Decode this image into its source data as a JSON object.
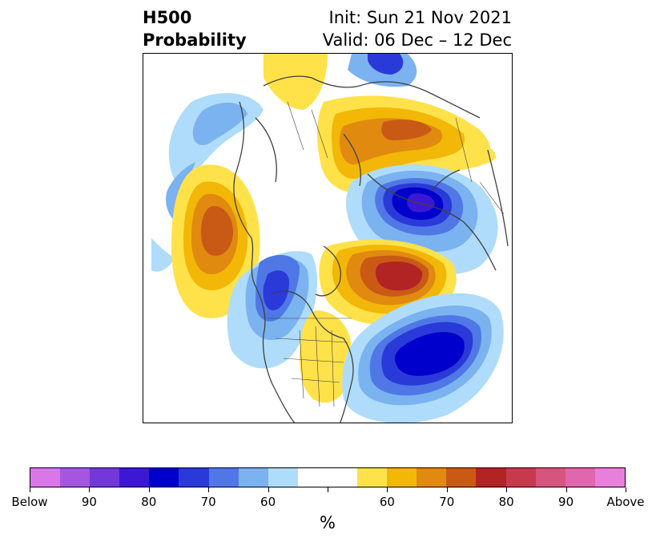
{
  "header": {
    "title_line1": "H500",
    "title_line2": "Probability",
    "init_text": "Init: Sun 21 Nov 2021",
    "valid_text": "Valid: 06 Dec – 12 Dec"
  },
  "map": {
    "projection": "north-polar-stereographic",
    "anomalies": [
      {
        "id": "alaska-aleutian-ridge",
        "sign": "above",
        "peak_percent": 75
      },
      {
        "id": "siberia-ridge",
        "sign": "above",
        "peak_percent": 70
      },
      {
        "id": "greenland-ridge",
        "sign": "above",
        "peak_percent": 80
      },
      {
        "id": "eastern-us-ridge",
        "sign": "above",
        "peak_percent": 60
      },
      {
        "id": "western-europe-ridge",
        "sign": "above",
        "peak_percent": 60
      },
      {
        "id": "barents-kara-trough",
        "sign": "below",
        "peak_percent": 80
      },
      {
        "id": "north-atlantic-trough",
        "sign": "below",
        "peak_percent": 80
      },
      {
        "id": "western-canada-trough",
        "sign": "below",
        "peak_percent": 70
      },
      {
        "id": "north-pacific-trough",
        "sign": "below",
        "peak_percent": 60
      }
    ]
  },
  "colorbar": {
    "unit_label": "%",
    "colors": [
      "#d977e8",
      "#a655e0",
      "#7238d8",
      "#3d18d4",
      "#0000cc",
      "#2a3ad8",
      "#4f78e6",
      "#7bb2f0",
      "#aedcfa",
      "#ffffff",
      "#ffffff",
      "#ffe24a",
      "#f2b707",
      "#e08a10",
      "#c85a16",
      "#b22424",
      "#c63a4e",
      "#d6557e",
      "#e066ad",
      "#e87fdd"
    ],
    "tick_labels": [
      "Below",
      "90",
      "80",
      "70",
      "60",
      "",
      "60",
      "70",
      "80",
      "90",
      "Above"
    ]
  }
}
